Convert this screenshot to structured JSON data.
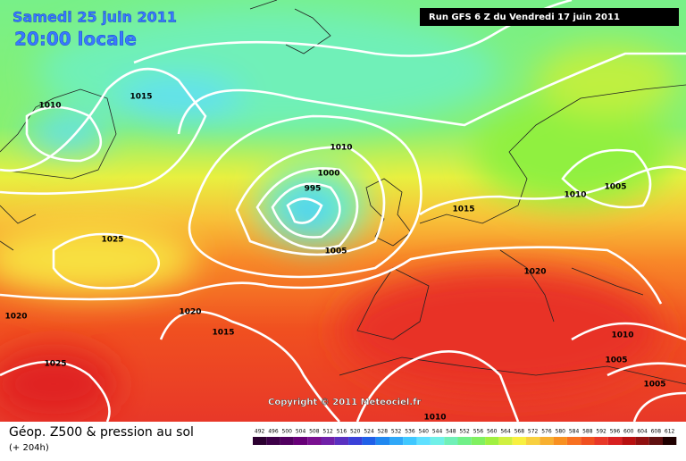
{
  "header": {
    "date": "Samedi 25 juin 2011",
    "time": "20:00 locale",
    "run": "Run GFS 6 Z du Vendredi 17 juin 2011"
  },
  "copyright": "Copyright © 2011 Meteociel.fr",
  "isobar_labels": [
    "1010",
    "1015",
    "1010",
    "1000",
    "995",
    "1005",
    "1015",
    "1010",
    "1005",
    "1025",
    "1020",
    "1020",
    "1020",
    "1015",
    "1010",
    "1005",
    "1025",
    "1005",
    "1010"
  ],
  "footer": {
    "title": "Géop. Z500 & pression au sol",
    "subtitle": "(+ 204h)"
  },
  "legend": {
    "items": [
      {
        "value": 492,
        "color": "#2b0030"
      },
      {
        "value": 496,
        "color": "#3d0048"
      },
      {
        "value": 500,
        "color": "#520060"
      },
      {
        "value": 504,
        "color": "#680078"
      },
      {
        "value": 508,
        "color": "#7a1090"
      },
      {
        "value": 512,
        "color": "#7020a8"
      },
      {
        "value": 516,
        "color": "#5a30c0"
      },
      {
        "value": 520,
        "color": "#3a40d8"
      },
      {
        "value": 524,
        "color": "#2060e8"
      },
      {
        "value": 528,
        "color": "#2088f0"
      },
      {
        "value": 532,
        "color": "#30a8f8"
      },
      {
        "value": 536,
        "color": "#40c8ff"
      },
      {
        "value": 540,
        "color": "#60e0ff"
      },
      {
        "value": 544,
        "color": "#70f0e8"
      },
      {
        "value": 548,
        "color": "#70f0b8"
      },
      {
        "value": 552,
        "color": "#70f088"
      },
      {
        "value": 556,
        "color": "#80f060"
      },
      {
        "value": 560,
        "color": "#a0f040"
      },
      {
        "value": 564,
        "color": "#d0f040"
      },
      {
        "value": 568,
        "color": "#f8f040"
      },
      {
        "value": 572,
        "color": "#f8d040"
      },
      {
        "value": 576,
        "color": "#f8b030"
      },
      {
        "value": 580,
        "color": "#f89020"
      },
      {
        "value": 584,
        "color": "#f87020"
      },
      {
        "value": 588,
        "color": "#f05020"
      },
      {
        "value": 592,
        "color": "#e83828"
      },
      {
        "value": 596,
        "color": "#d82020"
      },
      {
        "value": 600,
        "color": "#b81010"
      },
      {
        "value": 604,
        "color": "#901010"
      },
      {
        "value": 608,
        "color": "#601010"
      },
      {
        "value": 612,
        "color": "#200000"
      }
    ]
  }
}
